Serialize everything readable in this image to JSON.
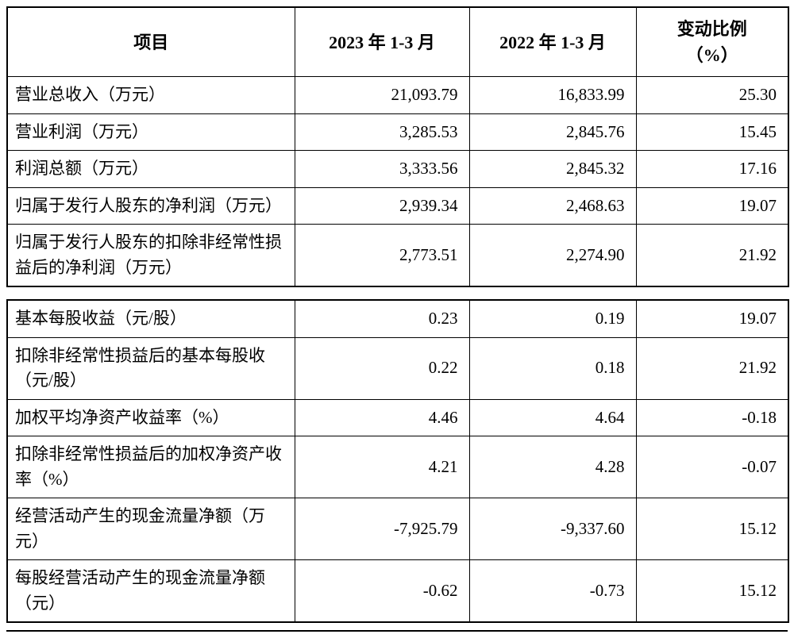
{
  "table": {
    "headers": {
      "item": "项目",
      "y2023": "2023 年 1-3 月",
      "y2022": "2022 年 1-3 月",
      "change": "变动比例\n（%）"
    },
    "section1": {
      "rows": [
        {
          "item": "营业总收入（万元）",
          "y2023": "21,093.79",
          "y2022": "16,833.99",
          "change": "25.30"
        },
        {
          "item": "营业利润（万元）",
          "y2023": "3,285.53",
          "y2022": "2,845.76",
          "change": "15.45"
        },
        {
          "item": "利润总额（万元）",
          "y2023": "3,333.56",
          "y2022": "2,845.32",
          "change": "17.16"
        },
        {
          "item": "归属于发行人股东的净利润（万元）",
          "y2023": "2,939.34",
          "y2022": "2,468.63",
          "change": "19.07"
        },
        {
          "item": "归属于发行人股东的扣除非经常性损益后的净利润（万元）",
          "y2023": "2,773.51",
          "y2022": "2,274.90",
          "change": "21.92"
        }
      ]
    },
    "section2": {
      "rows": [
        {
          "item": "基本每股收益（元/股）",
          "y2023": "0.23",
          "y2022": "0.19",
          "change": "19.07"
        },
        {
          "item": "扣除非经常性损益后的基本每股收（元/股）",
          "y2023": "0.22",
          "y2022": "0.18",
          "change": "21.92"
        },
        {
          "item": "加权平均净资产收益率（%）",
          "y2023": "4.46",
          "y2022": "4.64",
          "change": "-0.18"
        },
        {
          "item": "扣除非经常性损益后的加权净资产收率（%）",
          "y2023": "4.21",
          "y2022": "4.28",
          "change": "-0.07"
        },
        {
          "item": "经营活动产生的现金流量净额（万元）",
          "y2023": "-7,925.79",
          "y2022": "-9,337.60",
          "change": "15.12"
        },
        {
          "item": "每股经营活动产生的现金流量净额（元）",
          "y2023": "-0.62",
          "y2022": "-0.73",
          "change": "15.12"
        }
      ]
    }
  }
}
